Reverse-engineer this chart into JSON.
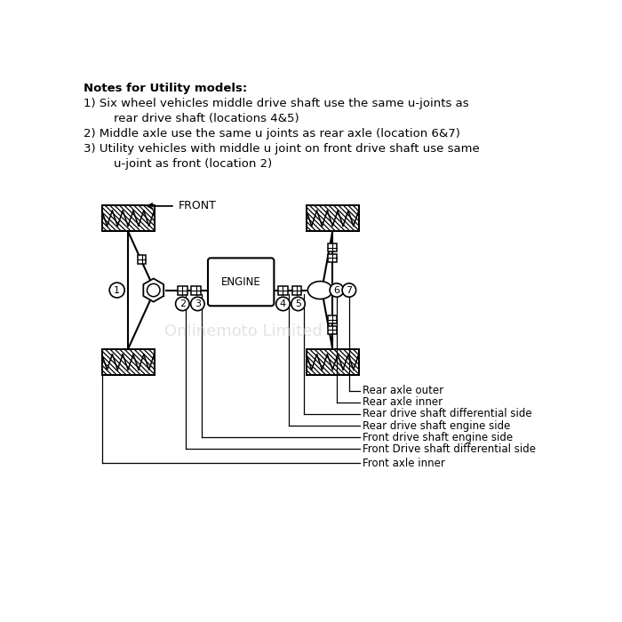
{
  "bg_color": "#ffffff",
  "line_color": "#000000",
  "watermark_color": "#cccccc",
  "notes": [
    "Notes for Utility models:",
    "1) Six wheel vehicles middle drive shaft use the same u-joints as",
    "        rear drive shaft (locations 4&5)",
    "2) Middle axle use the same u joints as rear axle (location 6&7)",
    "3) Utility vehicles with middle u joint on front drive shaft use same",
    "        u-joint as front (location 2)"
  ],
  "labels": {
    "front": "FRONT",
    "engine": "ENGINE",
    "rear_axle_outer": "Rear axle outer",
    "rear_axle_inner": "Rear axle inner",
    "rear_diff_side": "Rear drive shaft differential side",
    "rear_engine_side": "Rear drive shaft engine side",
    "front_engine_side": "Front drive shaft engine side",
    "front_diff_side": "Front Drive shaft differential side",
    "front_axle_inner": "Front axle inner"
  },
  "watermark": "Onlinemoto Limited"
}
